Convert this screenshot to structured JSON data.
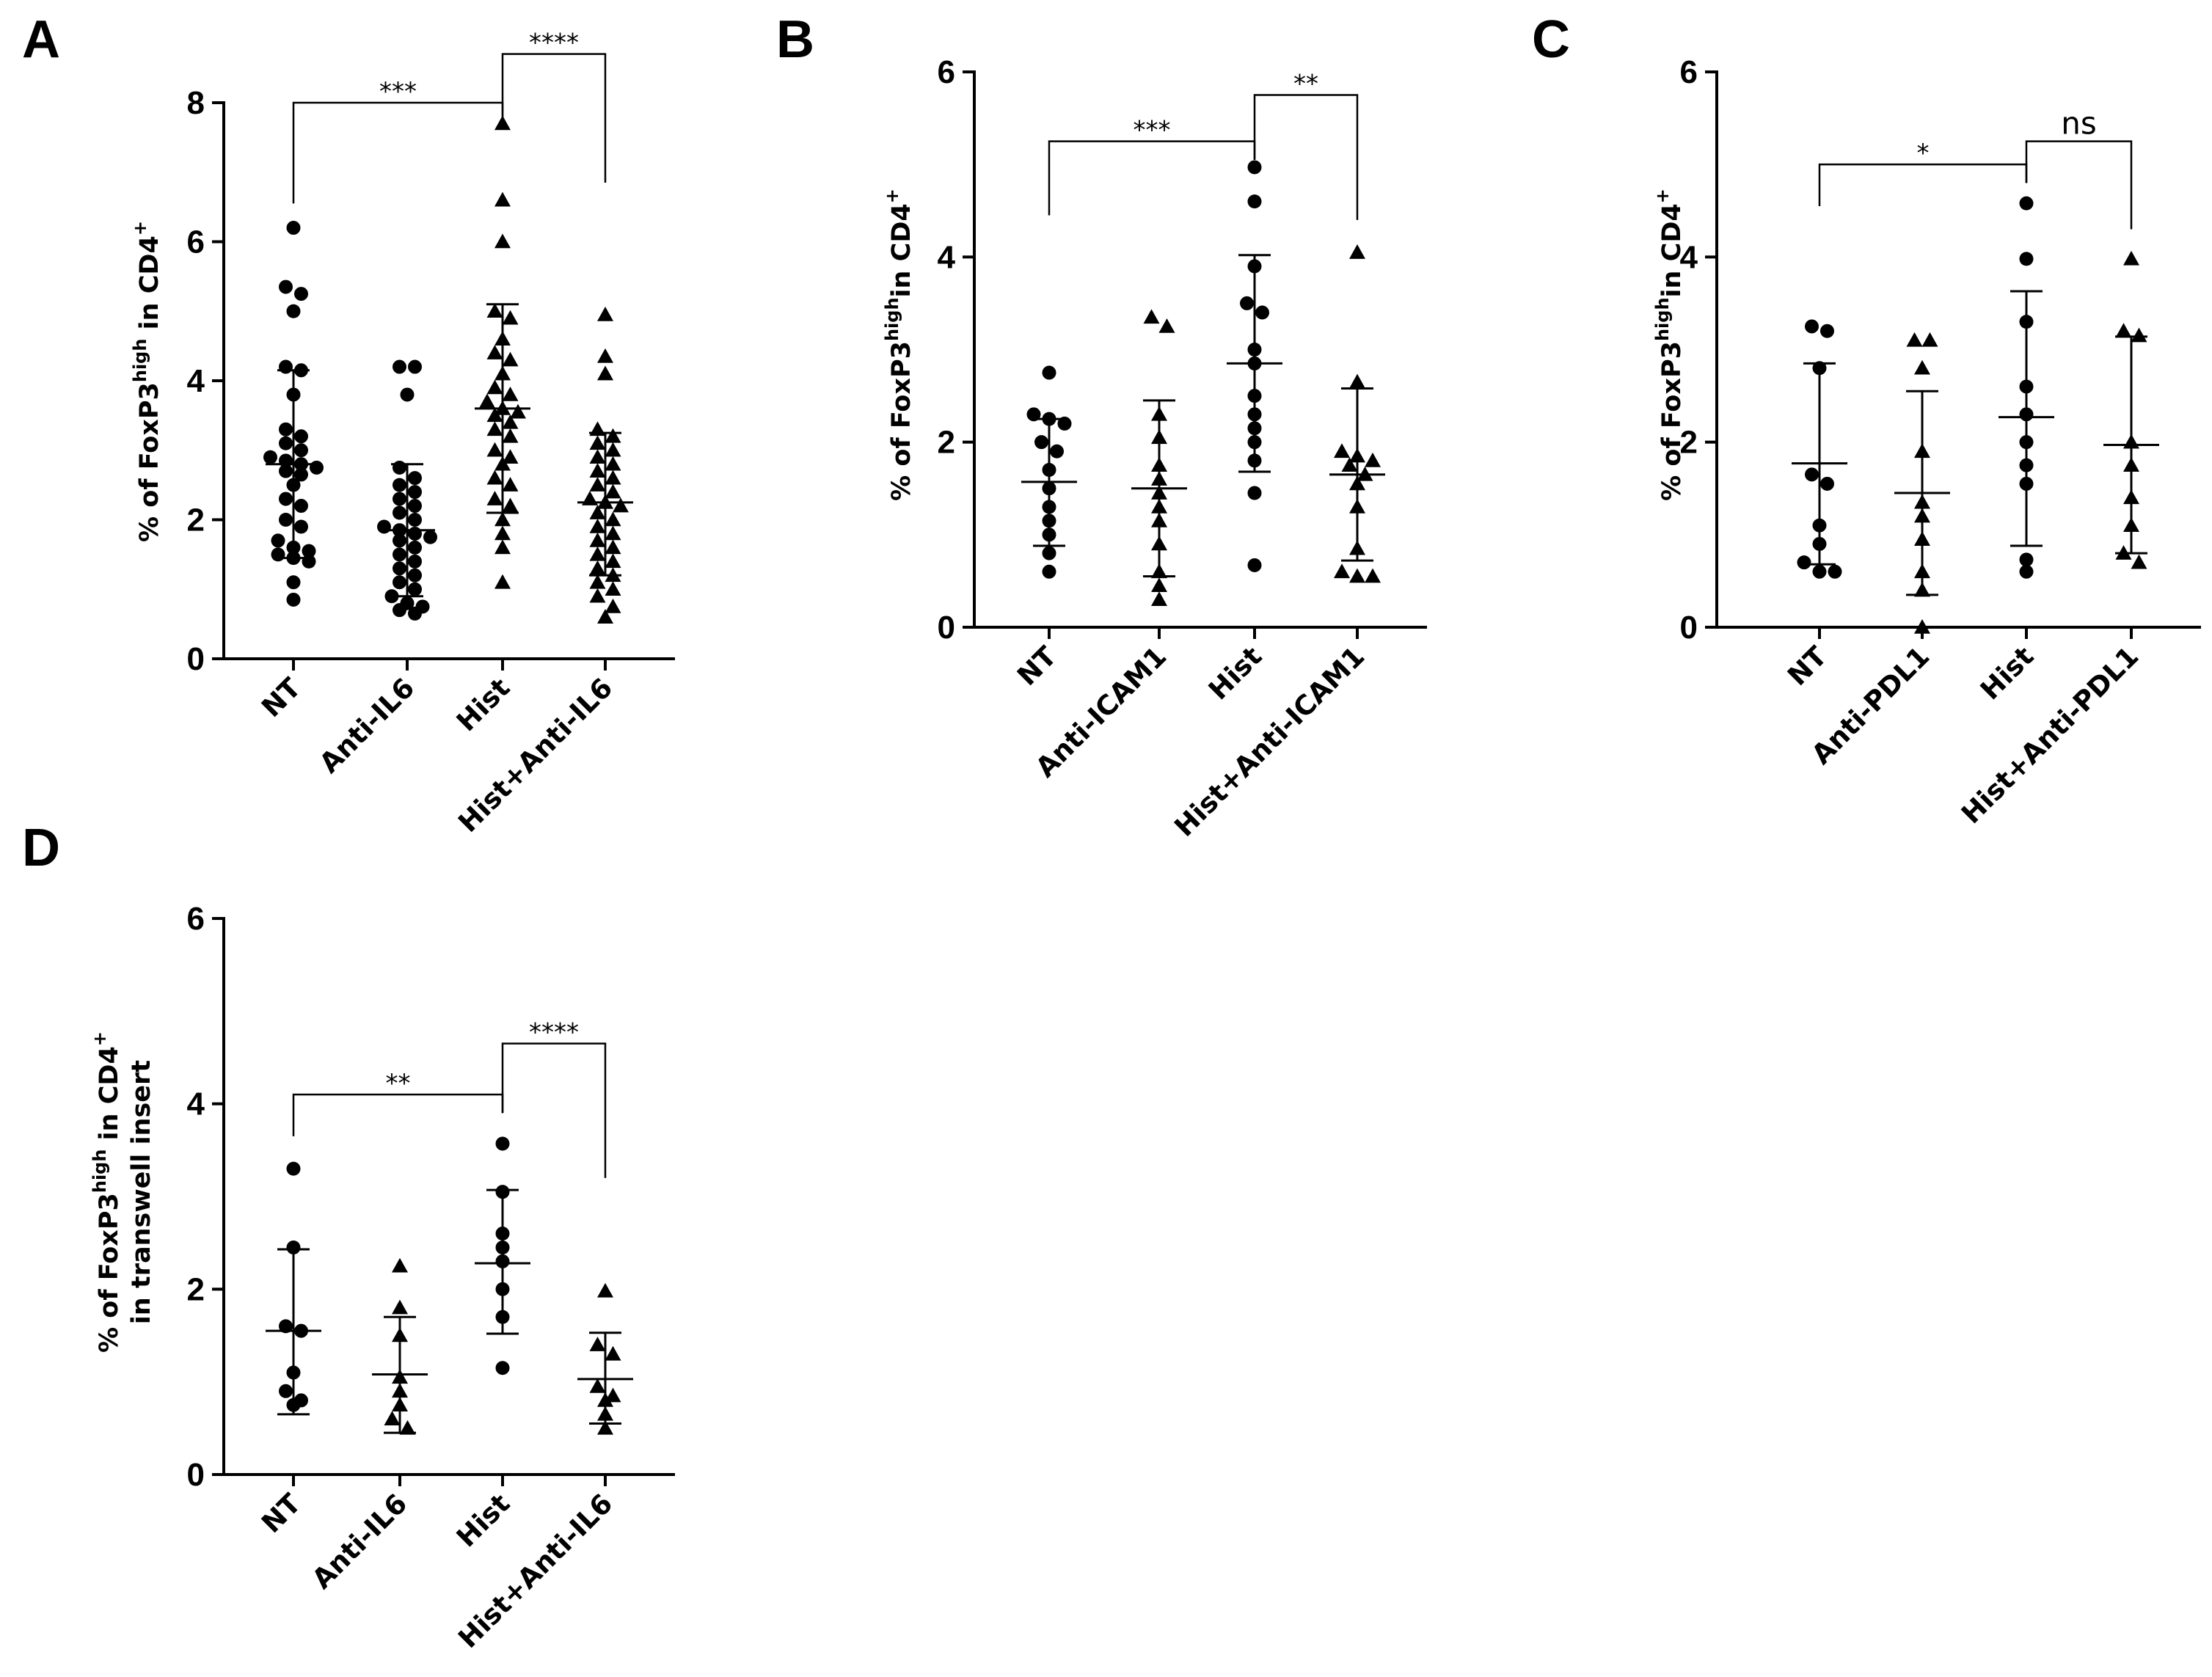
{
  "chart_data": [
    {
      "id": "A",
      "type": "scatter",
      "panel_label": "A",
      "ylabel": {
        "pre": "% of FoxP3",
        "sup1": "high",
        "mid": " in CD4",
        "sup2": "+"
      },
      "ylim": [
        0,
        8
      ],
      "yticks": [
        0,
        2,
        4,
        6,
        8
      ],
      "categories": [
        "NT",
        "Anti-IL6",
        "Hist",
        "Hist+Anti-IL6"
      ],
      "groups": [
        {
          "name": "NT",
          "marker": "circle",
          "mean": 2.8,
          "sd_low": 1.45,
          "sd_high": 4.15,
          "values": [
            6.2,
            5.35,
            5.25,
            5.0,
            4.2,
            4.15,
            3.8,
            3.3,
            3.2,
            3.1,
            3.0,
            2.9,
            2.85,
            2.8,
            2.75,
            2.7,
            2.65,
            2.5,
            2.3,
            2.2,
            2.0,
            1.9,
            1.7,
            1.6,
            1.55,
            1.5,
            1.45,
            1.4,
            1.1,
            0.85
          ]
        },
        {
          "name": "Anti-IL6",
          "marker": "circle",
          "mean": 1.85,
          "sd_low": 0.9,
          "sd_high": 2.8,
          "values": [
            4.2,
            4.2,
            3.8,
            2.75,
            2.6,
            2.5,
            2.4,
            2.3,
            2.2,
            2.1,
            2.0,
            1.9,
            1.85,
            1.8,
            1.75,
            1.7,
            1.6,
            1.5,
            1.4,
            1.3,
            1.2,
            1.1,
            1.0,
            0.9,
            0.8,
            0.75,
            0.7,
            0.65
          ]
        },
        {
          "name": "Hist",
          "marker": "triangle",
          "mean": 3.6,
          "sd_low": 2.1,
          "sd_high": 5.1,
          "values": [
            7.7,
            6.6,
            6.0,
            5.0,
            4.9,
            4.6,
            4.4,
            4.3,
            4.1,
            3.9,
            3.8,
            3.7,
            3.6,
            3.55,
            3.5,
            3.4,
            3.3,
            3.2,
            3.0,
            2.9,
            2.8,
            2.6,
            2.5,
            2.3,
            2.2,
            2.0,
            1.8,
            1.6,
            1.1
          ]
        },
        {
          "name": "Hist+Anti-IL6",
          "marker": "triangle",
          "mean": 2.25,
          "sd_low": 1.2,
          "sd_high": 3.25,
          "values": [
            4.95,
            4.35,
            4.1,
            3.3,
            3.2,
            3.1,
            3.0,
            2.9,
            2.8,
            2.7,
            2.6,
            2.5,
            2.4,
            2.3,
            2.25,
            2.2,
            2.1,
            2.0,
            1.9,
            1.8,
            1.7,
            1.6,
            1.5,
            1.4,
            1.3,
            1.2,
            1.1,
            1.0,
            0.9,
            0.75,
            0.6
          ]
        }
      ],
      "comparisons": [
        {
          "from": 0,
          "to": 2,
          "y": 8.0,
          "label": "***",
          "left_drop": 6.55,
          "right_drop": 7.75
        },
        {
          "from": 2,
          "to": 3,
          "y": 8.7,
          "label": "****",
          "left_drop": 7.75,
          "right_drop": 6.85
        }
      ]
    },
    {
      "id": "B",
      "type": "scatter",
      "panel_label": "B",
      "ylabel": {
        "pre": "% of FoxP3",
        "sup1": "high",
        "mid": "in CD4",
        "sup2": "+"
      },
      "ylim": [
        0,
        6
      ],
      "yticks": [
        0,
        2,
        4,
        6
      ],
      "categories": [
        "NT",
        "Anti-ICAM1",
        "Hist",
        "Hist+Anti-ICAM1"
      ],
      "groups": [
        {
          "name": "NT",
          "marker": "circle",
          "mean": 1.57,
          "sd_low": 0.88,
          "sd_high": 2.25,
          "values": [
            2.75,
            2.3,
            2.25,
            2.2,
            2.0,
            1.9,
            1.7,
            1.5,
            1.3,
            1.15,
            1.0,
            0.8,
            0.6
          ]
        },
        {
          "name": "Anti-ICAM1",
          "marker": "triangle",
          "mean": 1.5,
          "sd_low": 0.55,
          "sd_high": 2.45,
          "values": [
            3.35,
            3.25,
            2.3,
            2.05,
            1.75,
            1.6,
            1.45,
            1.3,
            1.15,
            0.9,
            0.6,
            0.45,
            0.3
          ]
        },
        {
          "name": "Hist",
          "marker": "circle",
          "mean": 2.85,
          "sd_low": 1.68,
          "sd_high": 4.02,
          "values": [
            4.97,
            4.6,
            3.9,
            3.5,
            3.4,
            3.0,
            2.85,
            2.5,
            2.3,
            2.15,
            2.0,
            1.8,
            1.45,
            0.67
          ]
        },
        {
          "name": "Hist+Anti-ICAM1",
          "marker": "triangle",
          "mean": 1.65,
          "sd_low": 0.72,
          "sd_high": 2.58,
          "values": [
            4.05,
            2.65,
            1.9,
            1.85,
            1.8,
            1.75,
            1.65,
            1.55,
            1.3,
            0.85,
            0.6,
            0.55,
            0.55
          ]
        }
      ],
      "comparisons": [
        {
          "from": 0,
          "to": 2,
          "y": 5.25,
          "label": "***",
          "left_drop": 4.45,
          "right_drop": 5.05
        },
        {
          "from": 2,
          "to": 3,
          "y": 5.75,
          "label": "**",
          "left_drop": 5.05,
          "right_drop": 4.4
        }
      ]
    },
    {
      "id": "C",
      "type": "scatter",
      "panel_label": "C",
      "ylabel": {
        "pre": "% of FoxP3",
        "sup1": "high",
        "mid": "in CD4",
        "sup2": "+"
      },
      "ylim": [
        0,
        6
      ],
      "yticks": [
        0,
        2,
        4,
        6
      ],
      "categories": [
        "NT",
        "Anti-PDL1",
        "Hist",
        "Hist+Anti-PDL1"
      ],
      "groups": [
        {
          "name": "NT",
          "marker": "circle",
          "mean": 1.77,
          "sd_low": 0.68,
          "sd_high": 2.85,
          "values": [
            3.25,
            3.2,
            2.8,
            1.65,
            1.55,
            1.1,
            0.9,
            0.7,
            0.6,
            0.6
          ]
        },
        {
          "name": "Anti-PDL1",
          "marker": "triangle",
          "mean": 1.45,
          "sd_low": 0.35,
          "sd_high": 2.55,
          "values": [
            3.1,
            3.1,
            2.8,
            1.9,
            1.35,
            1.2,
            0.95,
            0.6,
            0.4,
            0.0
          ]
        },
        {
          "name": "Hist",
          "marker": "circle",
          "mean": 2.27,
          "sd_low": 0.88,
          "sd_high": 3.63,
          "values": [
            4.58,
            3.98,
            3.3,
            2.6,
            2.3,
            2.0,
            1.75,
            1.55,
            0.73,
            0.6
          ]
        },
        {
          "name": "Hist+Anti-PDL1",
          "marker": "triangle",
          "mean": 1.97,
          "sd_low": 0.8,
          "sd_high": 3.14,
          "values": [
            3.98,
            3.2,
            3.15,
            2.0,
            1.75,
            1.4,
            1.1,
            0.8,
            0.7
          ]
        }
      ],
      "comparisons": [
        {
          "from": 0,
          "to": 2,
          "y": 5.0,
          "label": "*",
          "left_drop": 4.55,
          "right_drop": 4.8
        },
        {
          "from": 2,
          "to": 3,
          "y": 5.25,
          "label": "ns",
          "left_drop": 4.8,
          "right_drop": 4.3
        }
      ]
    },
    {
      "id": "D",
      "type": "scatter",
      "panel_label": "D",
      "ylabel": {
        "pre": "% of FoxP3",
        "sup1": "high",
        "mid": " in CD4",
        "sup2": "+",
        "line2": "in transwell insert"
      },
      "ylim": [
        0,
        6
      ],
      "yticks": [
        0,
        2,
        4,
        6
      ],
      "categories": [
        "NT",
        "Anti-IL6",
        "Hist",
        "Hist+Anti-IL6"
      ],
      "groups": [
        {
          "name": "NT",
          "marker": "circle",
          "mean": 1.55,
          "sd_low": 0.65,
          "sd_high": 2.43,
          "values": [
            3.3,
            2.45,
            1.6,
            1.55,
            1.1,
            0.9,
            0.8,
            0.75
          ]
        },
        {
          "name": "Anti-IL6",
          "marker": "triangle",
          "mean": 1.08,
          "sd_low": 0.45,
          "sd_high": 1.7,
          "values": [
            2.25,
            1.8,
            1.5,
            1.05,
            0.9,
            0.75,
            0.6,
            0.5
          ]
        },
        {
          "name": "Hist",
          "marker": "circle",
          "mean": 2.28,
          "sd_low": 1.52,
          "sd_high": 3.07,
          "values": [
            3.57,
            3.05,
            2.6,
            2.45,
            2.3,
            2.0,
            1.7,
            1.15
          ]
        },
        {
          "name": "Hist+Anti-IL6",
          "marker": "triangle",
          "mean": 1.03,
          "sd_low": 0.55,
          "sd_high": 1.53,
          "values": [
            1.98,
            1.4,
            1.3,
            0.95,
            0.85,
            0.8,
            0.65,
            0.5
          ]
        }
      ],
      "comparisons": [
        {
          "from": 0,
          "to": 2,
          "y": 4.1,
          "label": "**",
          "left_drop": 3.65,
          "right_drop": 3.9
        },
        {
          "from": 2,
          "to": 3,
          "y": 4.65,
          "label": "****",
          "left_drop": 3.9,
          "right_drop": 3.2
        }
      ]
    }
  ]
}
